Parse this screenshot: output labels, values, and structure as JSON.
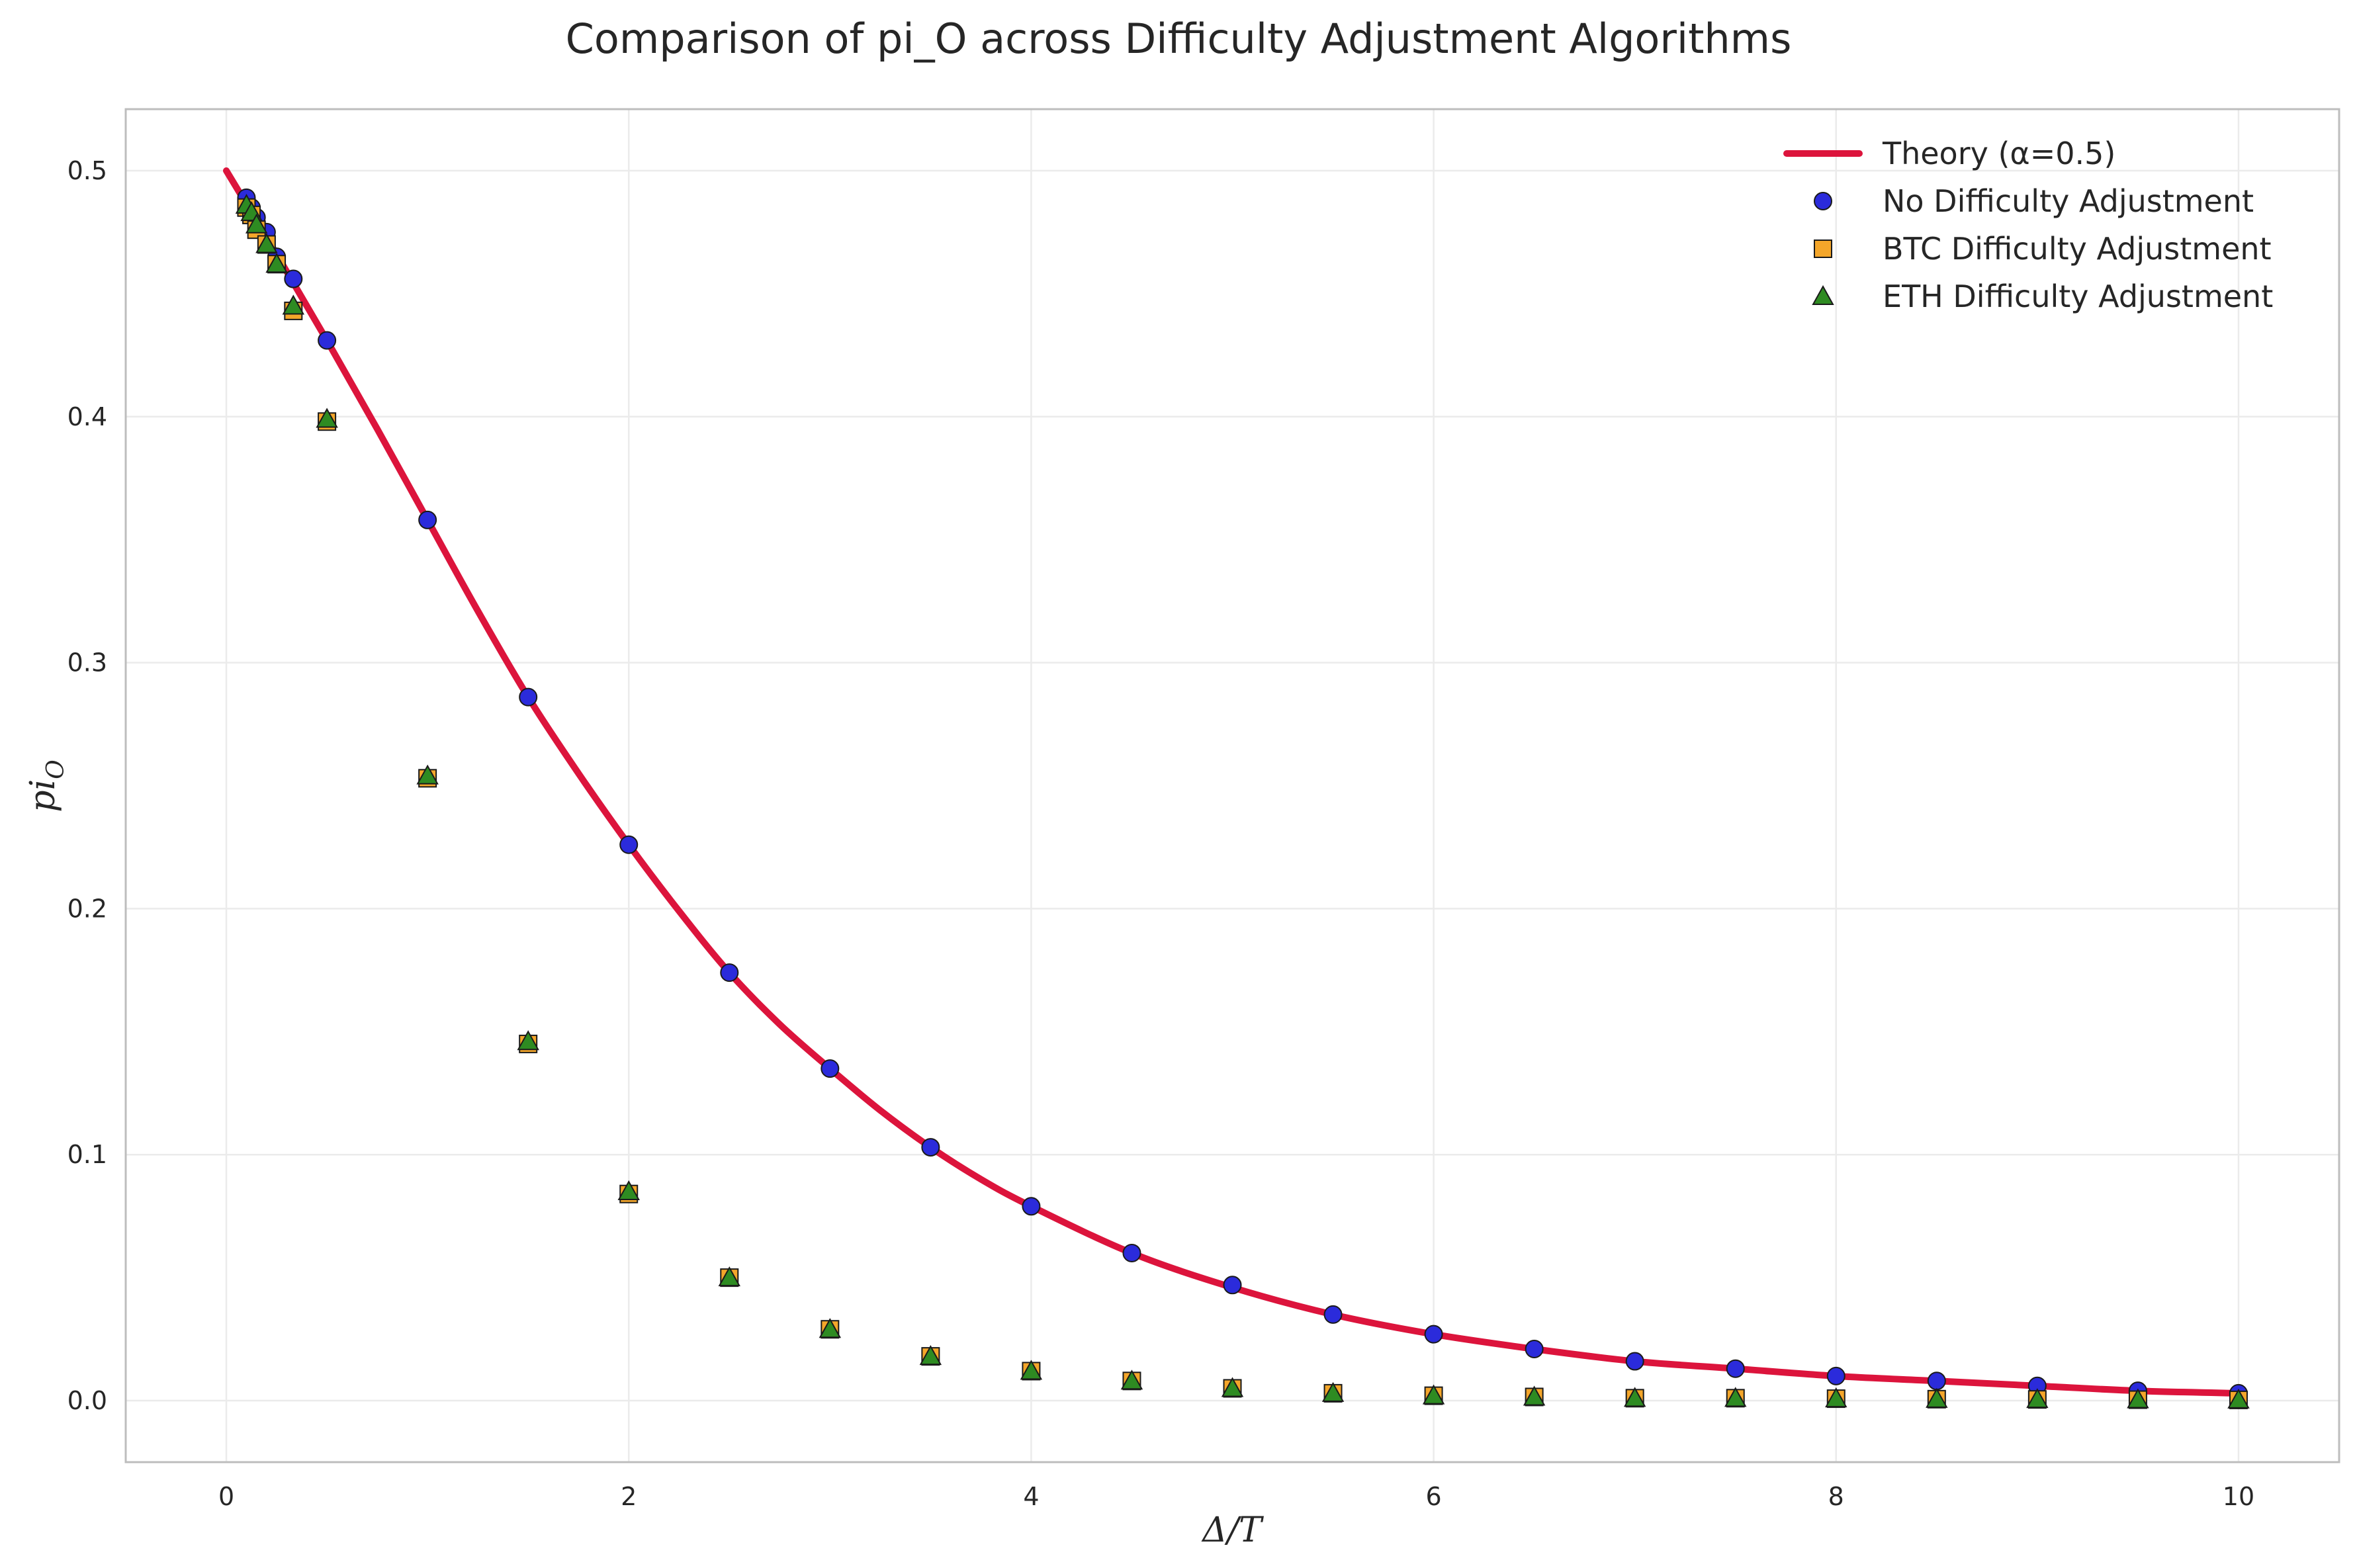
{
  "chart_data": {
    "type": "scatter",
    "title": "Comparison of pi_O across Difficulty Adjustment Algorithms",
    "xlabel": "Δ/T",
    "ylabel_base": "pi",
    "ylabel_sub": "O",
    "xlim": [
      -0.5,
      10.5
    ],
    "ylim": [
      -0.025,
      0.525
    ],
    "xticks": [
      0,
      2,
      4,
      6,
      8,
      10
    ],
    "yticks": [
      0.0,
      0.1,
      0.2,
      0.3,
      0.4,
      0.5
    ],
    "xtick_labels": [
      "0",
      "2",
      "4",
      "6",
      "8",
      "10"
    ],
    "ytick_labels": [
      "0.0",
      "0.1",
      "0.2",
      "0.3",
      "0.4",
      "0.5"
    ],
    "grid": true,
    "legend_position": "top-right",
    "theory": {
      "name": "Theory (α=0.5)",
      "color": "#dc143c",
      "x": [
        0,
        0.25,
        0.5,
        0.75,
        1,
        1.25,
        1.5,
        1.75,
        2,
        2.25,
        2.5,
        2.75,
        3,
        3.25,
        3.5,
        3.75,
        4,
        4.5,
        5,
        5.5,
        6,
        6.5,
        7,
        7.5,
        8,
        8.5,
        9,
        9.5,
        10
      ],
      "y": [
        0.5,
        0.466,
        0.431,
        0.395,
        0.358,
        0.321,
        0.286,
        0.255,
        0.226,
        0.199,
        0.174,
        0.153,
        0.135,
        0.118,
        0.103,
        0.09,
        0.079,
        0.06,
        0.046,
        0.035,
        0.027,
        0.021,
        0.016,
        0.013,
        0.01,
        0.008,
        0.006,
        0.004,
        0.003
      ]
    },
    "series": [
      {
        "name": "No Difficulty Adjustment",
        "marker": "circle",
        "color": "#2b2bdb",
        "x": [
          0.1,
          0.125,
          0.15,
          0.2,
          0.25,
          0.333,
          0.5,
          1,
          1.5,
          2,
          2.5,
          3,
          3.5,
          4,
          4.5,
          5,
          5.5,
          6,
          6.5,
          7,
          7.5,
          8,
          8.5,
          9,
          9.5,
          10
        ],
        "y": [
          0.489,
          0.485,
          0.481,
          0.475,
          0.465,
          0.456,
          0.431,
          0.358,
          0.286,
          0.226,
          0.174,
          0.135,
          0.103,
          0.079,
          0.06,
          0.047,
          0.035,
          0.027,
          0.021,
          0.016,
          0.013,
          0.01,
          0.008,
          0.006,
          0.004,
          0.003
        ]
      },
      {
        "name": "BTC Difficulty Adjustment",
        "marker": "square",
        "color": "#f4a62a",
        "x": [
          0.1,
          0.125,
          0.15,
          0.2,
          0.25,
          0.333,
          0.5,
          1,
          1.5,
          2,
          2.5,
          3,
          3.5,
          4,
          4.5,
          5,
          5.5,
          6,
          6.5,
          7,
          7.5,
          8,
          8.5,
          9,
          9.5,
          10
        ],
        "y": [
          0.485,
          0.482,
          0.476,
          0.47,
          0.462,
          0.443,
          0.398,
          0.253,
          0.145,
          0.084,
          0.05,
          0.029,
          0.018,
          0.012,
          0.008,
          0.005,
          0.003,
          0.002,
          0.0015,
          0.001,
          0.001,
          0.0008,
          0.0006,
          0.0005,
          0.0004,
          0.0003
        ]
      },
      {
        "name": "ETH Difficulty Adjustment",
        "marker": "triangle",
        "color": "#2e8b22",
        "x": [
          0.1,
          0.125,
          0.15,
          0.2,
          0.25,
          0.333,
          0.5,
          1,
          1.5,
          2,
          2.5,
          3,
          3.5,
          4,
          4.5,
          5,
          5.5,
          6,
          6.5,
          7,
          7.5,
          8,
          8.5,
          9,
          9.5,
          10
        ],
        "y": [
          0.486,
          0.483,
          0.478,
          0.47,
          0.462,
          0.445,
          0.399,
          0.254,
          0.146,
          0.085,
          0.05,
          0.029,
          0.018,
          0.012,
          0.008,
          0.005,
          0.003,
          0.002,
          0.0015,
          0.001,
          0.001,
          0.0008,
          0.0006,
          0.0005,
          0.0004,
          0.0003
        ]
      }
    ]
  }
}
